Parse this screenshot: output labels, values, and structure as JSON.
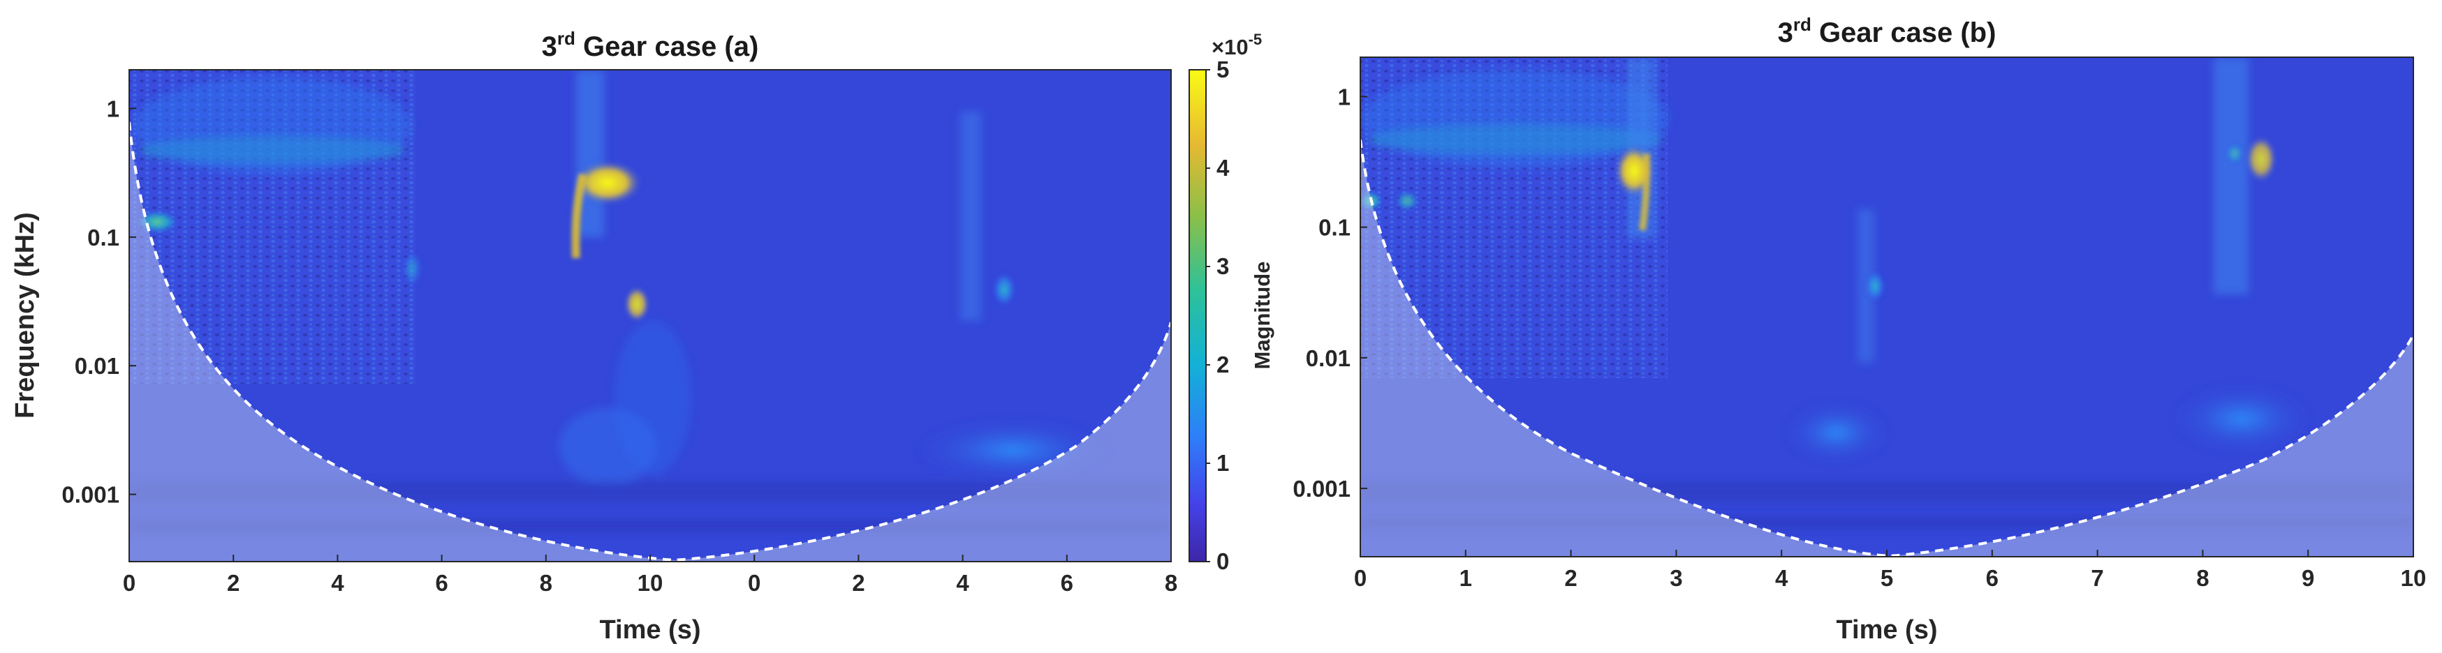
{
  "chart_data": [
    {
      "type": "heatmap",
      "panel": "a",
      "title": "3rd Gear case (a)",
      "title_main": "3",
      "title_sup": "rd",
      "title_rest": " Gear case (a)",
      "xlabel": "Time (s)",
      "ylabel": "Frequency (kHz)",
      "x_ticks": [
        "0",
        "2",
        "4",
        "6",
        "8",
        "10",
        "0",
        "2",
        "4",
        "6",
        "8"
      ],
      "y_ticks": [
        "1",
        "0.1",
        "0.01",
        "0.001"
      ],
      "y_scale": "log",
      "ylim": [
        0.0003,
        2
      ],
      "colorbar": {
        "label": "Magnitude",
        "exponent": "×10",
        "exponent_power": "-5",
        "ticks": [
          "0",
          "1",
          "2",
          "3",
          "4",
          "5"
        ],
        "range": [
          0,
          5
        ],
        "colormap": "parula"
      },
      "blobs": [
        {
          "t": 0.5,
          "f": 0.13,
          "mag": 3.0
        },
        {
          "t": 3.0,
          "f": 0.45,
          "mag": 2.4
        },
        {
          "t": 9.3,
          "f": 0.27,
          "mag": 5.0
        },
        {
          "t": 9.9,
          "f": 0.03,
          "mag": 4.2
        },
        {
          "t": 15.1,
          "f": 0.035,
          "mag": 2.8
        },
        {
          "t": 14.4,
          "f": 0.0025,
          "mag": 1.6
        }
      ],
      "cone_of_influence": "dashed white"
    },
    {
      "type": "heatmap",
      "panel": "b",
      "title": "3rd Gear case (b)",
      "title_main": "3",
      "title_sup": "rd",
      "title_rest": " Gear case (b)",
      "xlabel": "Time (s)",
      "ylabel": "",
      "x_ticks": [
        "0",
        "1",
        "2",
        "3",
        "4",
        "5",
        "6",
        "7",
        "8",
        "9",
        "10"
      ],
      "y_ticks": [
        "1",
        "0.1",
        "0.01",
        "0.001"
      ],
      "y_scale": "log",
      "ylim": [
        0.0003,
        2
      ],
      "blobs": [
        {
          "t": 0.2,
          "f": 0.16,
          "mag": 2.9
        },
        {
          "t": 1.8,
          "f": 0.45,
          "mag": 2.3
        },
        {
          "t": 2.85,
          "f": 0.25,
          "mag": 5.0
        },
        {
          "t": 4.9,
          "f": 0.04,
          "mag": 2.8
        },
        {
          "t": 8.4,
          "f": 0.35,
          "mag": 3.6
        },
        {
          "t": 8.4,
          "f": 0.003,
          "mag": 1.3
        }
      ],
      "cone_of_influence": "dashed white"
    }
  ]
}
